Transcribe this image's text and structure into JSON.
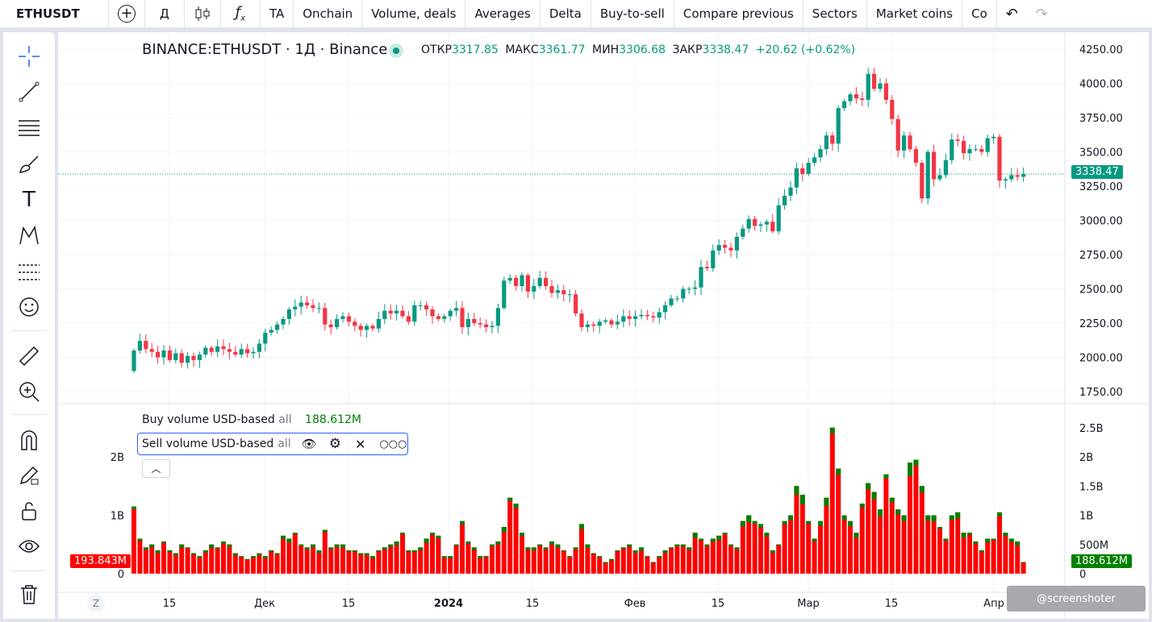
{
  "toolbar": {
    "symbol": "ETHUSDT",
    "interval": "Д",
    "items": [
      "TA",
      "Onchain",
      "Volume, deals",
      "Averages",
      "Delta",
      "Buy-to-sell",
      "Compare previous",
      "Sectors",
      "Market coins",
      "Co"
    ]
  },
  "legend": {
    "title": "BINANCE:ETHUSDT · 1Д · Binance",
    "open_label": "ОТКР",
    "open": "3317.85",
    "high_label": "МАКС",
    "high": "3361.77",
    "low_label": "МИН",
    "low": "3306.68",
    "close_label": "ЗАКР",
    "close": "3338.47",
    "change": "+20.62 (+0.62%)"
  },
  "volume_legend": {
    "buy_name": "Buy volume USD-based",
    "buy_param": "all",
    "buy_value": "188.612M",
    "sell_name": "Sell volume USD-based",
    "sell_param": "all"
  },
  "labels": {
    "last_price": "3338.47",
    "sell_value": "193.843M",
    "buy_value": "188.612M",
    "timezone": "Z"
  },
  "watermark": "@screenshoter",
  "colors": {
    "up": "#089981",
    "down": "#f23645",
    "volume_sell": "#ff0000",
    "volume_buy": "#008000",
    "accent": "#2962ff"
  },
  "chart_data": {
    "type": "candlestick",
    "price_ticks": [
      "4250.00",
      "4000.00",
      "3750.00",
      "3500.00",
      "3250.00",
      "3000.00",
      "2750.00",
      "2500.00",
      "2250.00",
      "2000.00",
      "1750.00"
    ],
    "price_range": [
      1750,
      4250
    ],
    "volume_ticks": [
      "2.5B",
      "2B",
      "1.5B",
      "1B",
      "500M",
      "0"
    ],
    "volume_ticks_left": [
      "2B",
      "1B",
      "0"
    ],
    "volume_range_billions": [
      0,
      2.5
    ],
    "time_ticks": [
      "15",
      "Дек",
      "15",
      "2024",
      "15",
      "Фев",
      "15",
      "Мар",
      "15",
      "Апр"
    ],
    "start_date": "2023-11-09",
    "closes": [
      2050,
      2120,
      2060,
      2040,
      2000,
      2050,
      1980,
      2030,
      1960,
      2010,
      1980,
      2020,
      2070,
      2040,
      2080,
      2060,
      2040,
      2020,
      2060,
      2030,
      2040,
      2100,
      2180,
      2200,
      2240,
      2280,
      2350,
      2370,
      2400,
      2380,
      2360,
      2360,
      2240,
      2220,
      2280,
      2300,
      2260,
      2230,
      2200,
      2230,
      2210,
      2280,
      2340,
      2320,
      2340,
      2300,
      2260,
      2380,
      2380,
      2350,
      2300,
      2280,
      2300,
      2340,
      2360,
      2220,
      2280,
      2250,
      2240,
      2220,
      2230,
      2360,
      2560,
      2580,
      2520,
      2600,
      2480,
      2520,
      2580,
      2520,
      2470,
      2490,
      2460,
      2460,
      2320,
      2220,
      2240,
      2230,
      2260,
      2270,
      2240,
      2260,
      2300,
      2280,
      2300,
      2310,
      2300,
      2290,
      2330,
      2380,
      2430,
      2430,
      2500,
      2500,
      2510,
      2660,
      2650,
      2780,
      2820,
      2800,
      2780,
      2880,
      2940,
      3010,
      2960,
      2970,
      2990,
      2920,
      3110,
      3180,
      3240,
      3380,
      3340,
      3420,
      3460,
      3520,
      3620,
      3560,
      3820,
      3870,
      3920,
      3890,
      3880,
      4070,
      3960,
      4000,
      3880,
      3740,
      3510,
      3620,
      3520,
      3420,
      3160,
      3500,
      3300,
      3330,
      3440,
      3590,
      3580,
      3490,
      3520,
      3520,
      3500,
      3600,
      3610,
      3290,
      3300,
      3330,
      3318,
      3338
    ],
    "volumes_billions": [
      1.15,
      0.6,
      0.45,
      0.5,
      0.4,
      0.55,
      0.4,
      0.35,
      0.5,
      0.45,
      0.35,
      0.3,
      0.4,
      0.5,
      0.45,
      0.55,
      0.5,
      0.35,
      0.3,
      0.25,
      0.3,
      0.35,
      0.3,
      0.4,
      0.35,
      0.65,
      0.6,
      0.7,
      0.5,
      0.45,
      0.5,
      0.4,
      0.75,
      0.45,
      0.5,
      0.5,
      0.4,
      0.4,
      0.35,
      0.35,
      0.3,
      0.4,
      0.45,
      0.5,
      0.55,
      0.7,
      0.4,
      0.4,
      0.45,
      0.6,
      0.7,
      0.65,
      0.3,
      0.3,
      0.5,
      0.9,
      0.55,
      0.45,
      0.3,
      0.3,
      0.5,
      0.55,
      0.8,
      1.3,
      1.2,
      0.7,
      0.45,
      0.45,
      0.5,
      0.45,
      0.55,
      0.5,
      0.4,
      0.3,
      0.45,
      0.85,
      0.5,
      0.35,
      0.3,
      0.2,
      0.25,
      0.4,
      0.45,
      0.5,
      0.4,
      0.45,
      0.3,
      0.2,
      0.3,
      0.4,
      0.45,
      0.5,
      0.5,
      0.45,
      0.7,
      0.6,
      0.5,
      0.6,
      0.65,
      0.7,
      0.5,
      0.45,
      0.9,
      1.0,
      0.9,
      0.85,
      0.7,
      0.4,
      0.5,
      0.9,
      1.0,
      1.5,
      1.35,
      0.9,
      0.6,
      0.9,
      1.3,
      2.5,
      1.8,
      1.0,
      0.9,
      0.7,
      1.2,
      1.55,
      1.4,
      1.1,
      1.7,
      1.3,
      1.1,
      1.0,
      1.9,
      1.95,
      1.5,
      1.0,
      1.0,
      0.8,
      0.6,
      1.0,
      1.05,
      0.7,
      0.7,
      0.55,
      0.4,
      0.6,
      0.6,
      1.05,
      0.7,
      0.6,
      0.55,
      0.2
    ]
  }
}
